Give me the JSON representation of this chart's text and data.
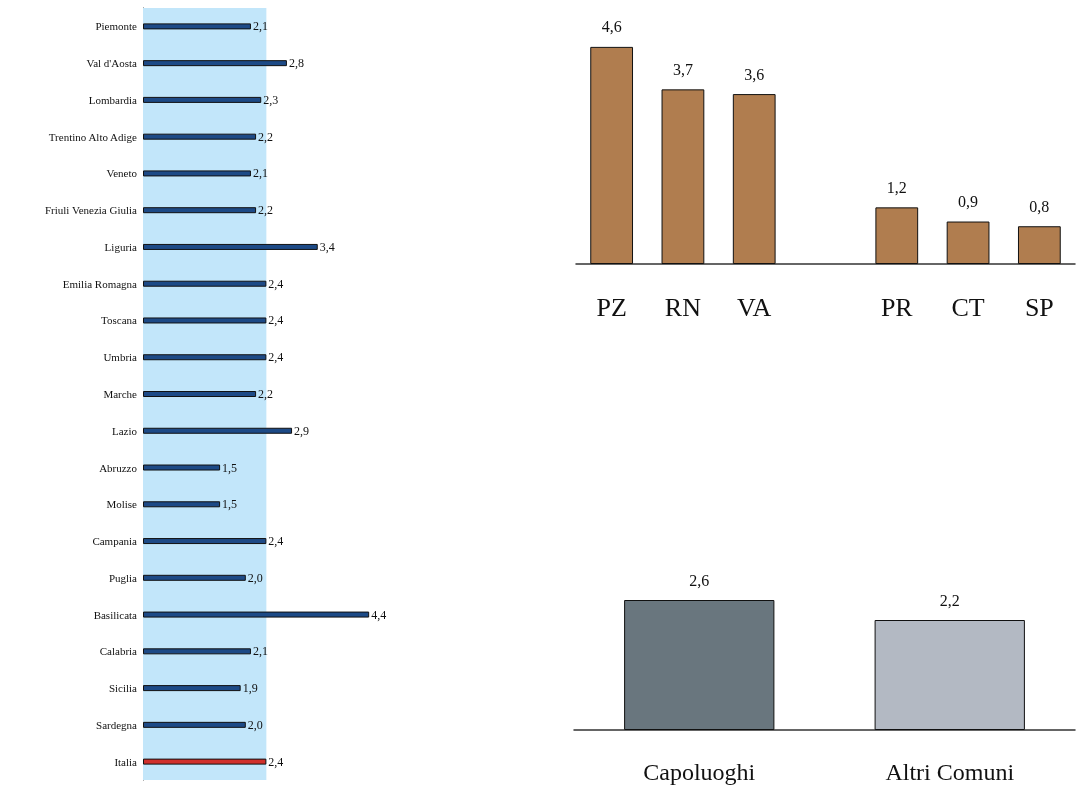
{
  "chart_data": [
    {
      "type": "bar",
      "orientation": "horizontal",
      "categories": [
        "Piemonte",
        "Val d'Aosta",
        "Lombardia",
        "Trentino Alto Adige",
        "Veneto",
        "Friuli Venezia Giulia",
        "Liguria",
        "Emilia Romagna",
        "Toscana",
        "Umbria",
        "Marche",
        "Lazio",
        "Abruzzo",
        "Molise",
        "Campania",
        "Puglia",
        "Basilicata",
        "Calabria",
        "Sicilia",
        "Sardegna",
        "Italia"
      ],
      "values": [
        2.1,
        2.8,
        2.3,
        2.2,
        2.1,
        2.2,
        3.4,
        2.4,
        2.4,
        2.4,
        2.2,
        2.9,
        1.5,
        1.5,
        2.4,
        2.0,
        4.4,
        2.1,
        1.9,
        2.0,
        2.4
      ],
      "value_labels": [
        "2,1",
        "2,8",
        "2,3",
        "2,2",
        "2,1",
        "2,2",
        "3,4",
        "2,4",
        "2,4",
        "2,4",
        "2,2",
        "2,9",
        "1,5",
        "1,5",
        "2,4",
        "2,0",
        "4,4",
        "2,1",
        "1,9",
        "2,0",
        "2,4"
      ],
      "colors": [
        "#1d4a86",
        "#1d4a86",
        "#1d4a86",
        "#1d4a86",
        "#1d4a86",
        "#1d4a86",
        "#1d4a86",
        "#1d4a86",
        "#1d4a86",
        "#1d4a86",
        "#1d4a86",
        "#1d4a86",
        "#1d4a86",
        "#1d4a86",
        "#1d4a86",
        "#1d4a86",
        "#1d4a86",
        "#1d4a86",
        "#1d4a86",
        "#1d4a86",
        "#d0302c"
      ],
      "bands": [
        {
          "axis": "x",
          "from": 0,
          "to": 2.4,
          "color": "#c2e6fa"
        }
      ],
      "grid": false
    },
    {
      "type": "bar",
      "categories": [
        "PZ",
        "RN",
        "VA",
        null,
        "PR",
        "CT",
        "SP"
      ],
      "values": [
        4.6,
        3.7,
        3.6,
        null,
        1.2,
        0.9,
        0.8
      ],
      "value_labels": [
        "4,6",
        "3,7",
        "3,6",
        null,
        "1,2",
        "0,9",
        "0,8"
      ],
      "color": "#b07d4f",
      "grid": false
    },
    {
      "type": "bar",
      "categories": [
        "Capoluoghi",
        "Altri Comuni"
      ],
      "values": [
        2.6,
        2.2
      ],
      "value_labels": [
        "2,6",
        "2,2"
      ],
      "colors": [
        "#69767e",
        "#b3b9c3"
      ],
      "grid": false
    }
  ]
}
